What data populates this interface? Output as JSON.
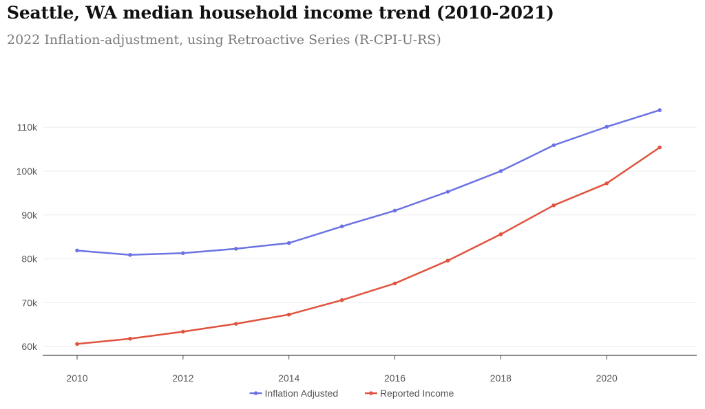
{
  "title": "Seattle, WA median household income trend (2010-2021)",
  "subtitle": "2022 Inflation-adjustment, using Retroactive Series (R-CPI-U-RS)",
  "chart_data": {
    "type": "line",
    "title": "Seattle, WA median household income trend (2010-2021)",
    "subtitle": "2022 Inflation-adjustment, using Retroactive Series (R-CPI-U-RS)",
    "xlabel": "",
    "ylabel": "",
    "x": [
      2010,
      2011,
      2012,
      2013,
      2014,
      2015,
      2016,
      2017,
      2018,
      2019,
      2020,
      2021
    ],
    "xlim": [
      2009.35,
      2021.7
    ],
    "ylim": [
      58000,
      115500
    ],
    "xticks": [
      2010,
      2012,
      2014,
      2016,
      2018,
      2020
    ],
    "xtick_labels": [
      "2010",
      "2012",
      "2014",
      "2016",
      "2018",
      "2020"
    ],
    "yticks": [
      60000,
      70000,
      80000,
      90000,
      100000,
      110000
    ],
    "ytick_labels": [
      "60k",
      "70k",
      "80k",
      "90k",
      "100k",
      "110k"
    ],
    "grid": "horizontal",
    "legend_position": "bottom",
    "series": [
      {
        "name": "Inflation Adjusted",
        "color": "#6b72e3",
        "values": [
          81900,
          80900,
          81300,
          82300,
          83600,
          87400,
          91000,
          95300,
          100000,
          105900,
          110100,
          113900
        ]
      },
      {
        "name": "Reported Income",
        "color": "#e0533e",
        "values": [
          60600,
          61800,
          63400,
          65200,
          67300,
          70600,
          74400,
          79600,
          85600,
          92200,
          97200,
          105400
        ]
      }
    ]
  }
}
